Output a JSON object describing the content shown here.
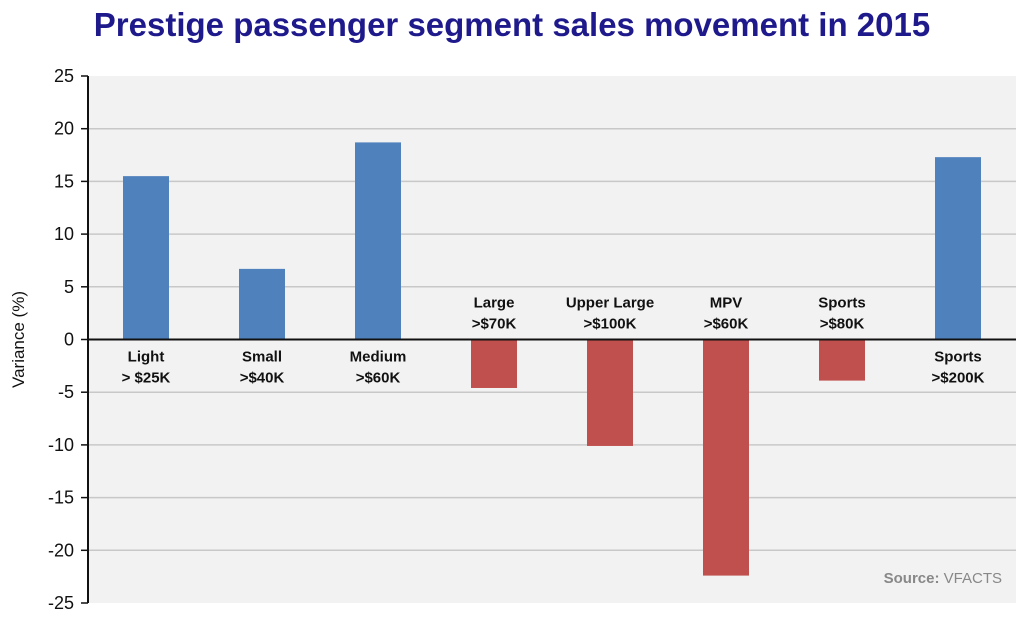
{
  "colors": {
    "title": "#1f1a8c",
    "positive": "#4f81bd",
    "negative": "#c0504d",
    "plot_bg": "#f2f2f2",
    "grid": "#c8c8c8"
  },
  "chart_data": {
    "type": "bar",
    "title": "Prestige passenger segment sales movement in 2015",
    "ylabel": "Variance (%)",
    "xlabel": "",
    "ylim": [
      -25,
      25
    ],
    "yticks": [
      25,
      20,
      15,
      10,
      5,
      0,
      -5,
      -10,
      -15,
      -20,
      -25
    ],
    "grid": true,
    "categories": [
      [
        "Light",
        "> $25K"
      ],
      [
        "Small",
        ">$40K"
      ],
      [
        "Medium",
        ">$60K"
      ],
      [
        "Large",
        ">$70K"
      ],
      [
        "Upper Large",
        ">$100K"
      ],
      [
        "MPV",
        ">$60K"
      ],
      [
        "Sports",
        ">$80K"
      ],
      [
        "Sports",
        ">$200K"
      ]
    ],
    "values": [
      15.5,
      6.7,
      18.7,
      -4.6,
      -10.1,
      -22.4,
      -3.9,
      17.3
    ],
    "source_label": "Source:",
    "source_value": "VFACTS"
  }
}
